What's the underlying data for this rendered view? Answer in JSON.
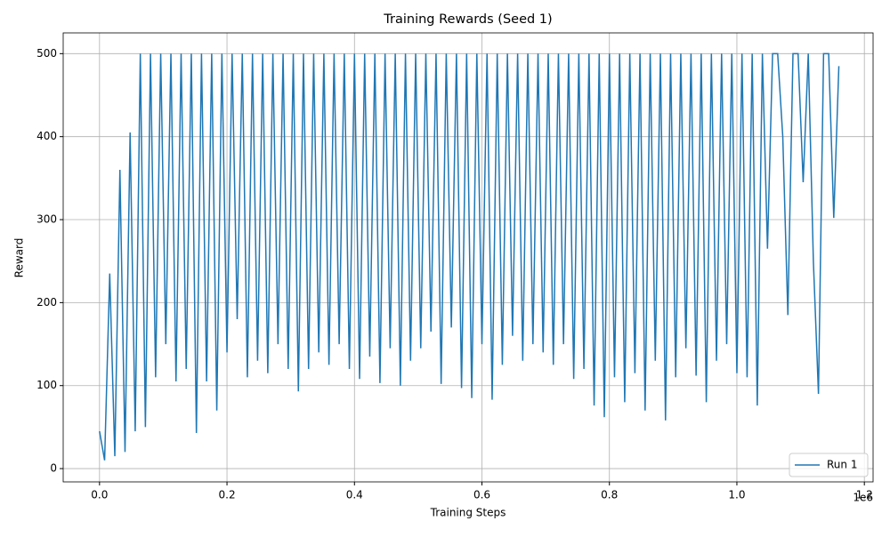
{
  "chart_data": {
    "type": "line",
    "title": "Training Rewards (Seed 1)",
    "x_label": "Training Steps",
    "y_label": "Reward",
    "x_offset_label": "1e6",
    "x": [
      0,
      8000,
      16000,
      24000,
      32000,
      40000,
      48000,
      56000,
      64000,
      72000,
      80000,
      88000,
      96000,
      104000,
      112000,
      120000,
      128000,
      136000,
      144000,
      152000,
      160000,
      168000,
      176000,
      184000,
      192000,
      200000,
      208000,
      216000,
      224000,
      232000,
      240000,
      248000,
      256000,
      264000,
      272000,
      280000,
      288000,
      296000,
      304000,
      312000,
      320000,
      328000,
      336000,
      344000,
      352000,
      360000,
      368000,
      376000,
      384000,
      392000,
      400000,
      408000,
      416000,
      424000,
      432000,
      440000,
      448000,
      456000,
      464000,
      472000,
      480000,
      488000,
      496000,
      504000,
      512000,
      520000,
      528000,
      536000,
      544000,
      552000,
      560000,
      568000,
      576000,
      584000,
      592000,
      600000,
      608000,
      616000,
      624000,
      632000,
      640000,
      648000,
      656000,
      664000,
      672000,
      680000,
      688000,
      696000,
      704000,
      712000,
      720000,
      728000,
      736000,
      744000,
      752000,
      760000,
      768000,
      776000,
      784000,
      792000,
      800000,
      808000,
      816000,
      824000,
      832000,
      840000,
      848000,
      856000,
      864000,
      872000,
      880000,
      888000,
      896000,
      904000,
      912000,
      920000,
      928000,
      936000,
      944000,
      952000,
      960000,
      968000,
      976000,
      984000,
      992000,
      1000000,
      1008000,
      1016000,
      1024000,
      1032000,
      1040000,
      1048000,
      1056000,
      1064000,
      1072000,
      1080000,
      1088000,
      1096000,
      1104000,
      1112000,
      1120000,
      1128000,
      1136000,
      1144000,
      1152000,
      1160000
    ],
    "series": [
      {
        "name": "Run 1",
        "color": "#1f77b4",
        "values": [
          45,
          10,
          235,
          15,
          360,
          20,
          405,
          45,
          500,
          50,
          500,
          110,
          500,
          150,
          500,
          105,
          500,
          120,
          500,
          43,
          500,
          105,
          500,
          70,
          500,
          140,
          500,
          180,
          500,
          110,
          500,
          130,
          500,
          115,
          500,
          150,
          500,
          120,
          500,
          93,
          500,
          120,
          500,
          140,
          500,
          125,
          500,
          150,
          500,
          120,
          500,
          108,
          500,
          135,
          500,
          103,
          500,
          145,
          500,
          100,
          500,
          130,
          500,
          145,
          500,
          165,
          500,
          102,
          500,
          170,
          500,
          97,
          500,
          85,
          500,
          150,
          500,
          83,
          500,
          125,
          500,
          160,
          500,
          130,
          500,
          150,
          500,
          140,
          500,
          125,
          500,
          150,
          500,
          108,
          500,
          120,
          500,
          76,
          500,
          62,
          500,
          110,
          500,
          80,
          500,
          115,
          500,
          70,
          500,
          130,
          500,
          58,
          500,
          110,
          500,
          145,
          500,
          112,
          500,
          80,
          500,
          130,
          500,
          150,
          500,
          115,
          500,
          110,
          500,
          76,
          500,
          265,
          500,
          500,
          400,
          185,
          500,
          500,
          345,
          500,
          250,
          90,
          500,
          500,
          302,
          485
        ]
      }
    ],
    "xlim": [
      -57000,
      1213700
    ],
    "xticks": [
      {
        "value": 0,
        "label": "0.0"
      },
      {
        "value": 200000,
        "label": "0.2"
      },
      {
        "value": 400000,
        "label": "0.4"
      },
      {
        "value": 600000,
        "label": "0.6"
      },
      {
        "value": 800000,
        "label": "0.8"
      },
      {
        "value": 1000000,
        "label": "1.0"
      },
      {
        "value": 1200000,
        "label": "1.2"
      }
    ],
    "ylim": [
      -16,
      525
    ],
    "yticks": [
      0,
      100,
      200,
      300,
      400,
      500
    ],
    "grid": true,
    "legend": "lower right"
  }
}
